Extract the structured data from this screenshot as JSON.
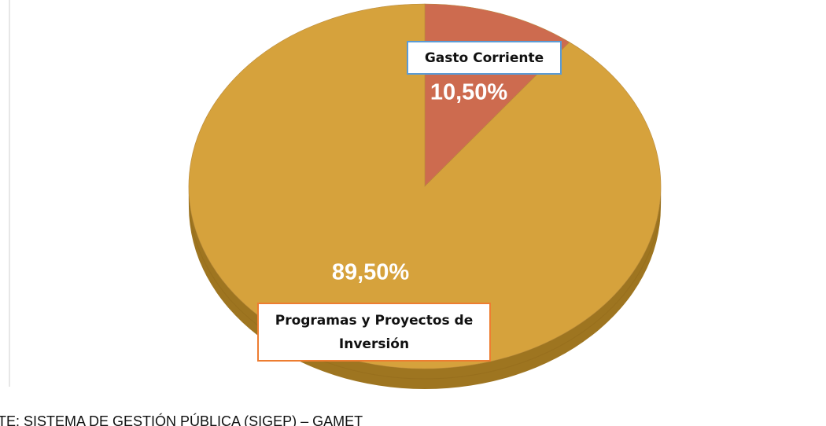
{
  "chart_data": {
    "type": "pie",
    "categories": [
      "Gasto Corriente",
      "Programas y Proyectos de Inversión"
    ],
    "values": [
      10.5,
      89.5
    ],
    "value_labels": [
      "10,50%",
      "89,50%"
    ],
    "colors": [
      "#CD6B4F",
      "#D6A23C"
    ],
    "label_borders": [
      "#5B9BD5",
      "#ED7D31"
    ],
    "source": "FUENTE: SISTEMA DE GESTIÓN PÚBLICA (SIGEP) – GAMET"
  }
}
